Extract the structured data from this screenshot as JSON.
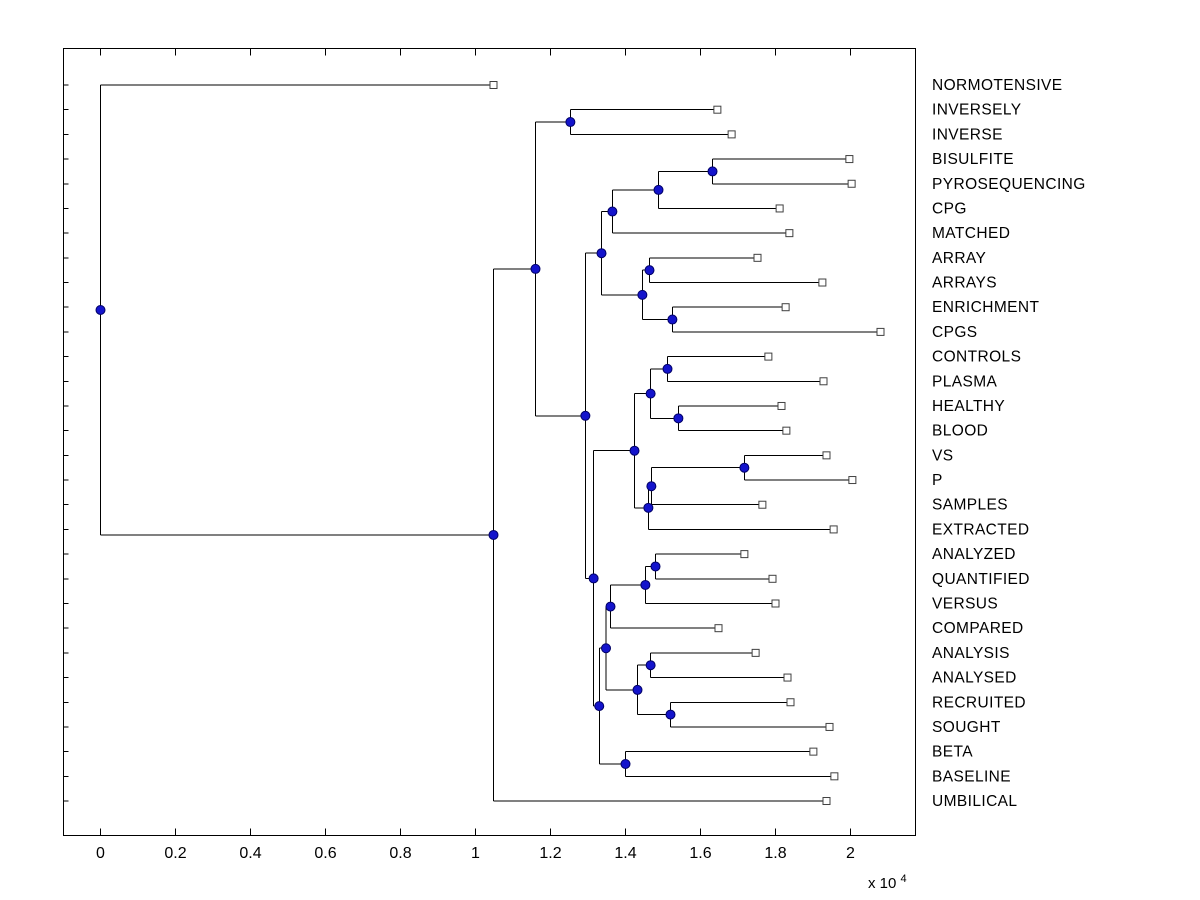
{
  "chart_data": {
    "type": "dendrogram",
    "orientation": "horizontal-root-left",
    "x_axis": {
      "tick_values": [
        0,
        2000,
        4000,
        6000,
        8000,
        10000,
        12000,
        14000,
        16000,
        18000,
        20000
      ],
      "tick_labels": [
        "0",
        "0.2",
        "0.4",
        "0.6",
        "0.8",
        "1",
        "1.2",
        "1.4",
        "1.6",
        "1.8",
        "2"
      ],
      "exponent_label": "x 10",
      "exponent": "4",
      "range": [
        -1000,
        21700
      ]
    },
    "leaves": [
      {
        "label": "NORMOTENSIVE",
        "distance": 10480
      },
      {
        "label": "INVERSELY",
        "distance": 16450
      },
      {
        "label": "INVERSE",
        "distance": 16830
      },
      {
        "label": "BISULFITE",
        "distance": 19970
      },
      {
        "label": "PYROSEQUENCING",
        "distance": 20030
      },
      {
        "label": "CPG",
        "distance": 18110
      },
      {
        "label": "MATCHED",
        "distance": 18370
      },
      {
        "label": "ARRAY",
        "distance": 17520
      },
      {
        "label": "ARRAYS",
        "distance": 19250
      },
      {
        "label": "ENRICHMENT",
        "distance": 18270
      },
      {
        "label": "CPGS",
        "distance": 20800
      },
      {
        "label": "CONTROLS",
        "distance": 17810
      },
      {
        "label": "PLASMA",
        "distance": 19280
      },
      {
        "label": "HEALTHY",
        "distance": 18160
      },
      {
        "label": "BLOOD",
        "distance": 18290
      },
      {
        "label": "VS",
        "distance": 19360
      },
      {
        "label": "P",
        "distance": 20050
      },
      {
        "label": "SAMPLES",
        "distance": 17650
      },
      {
        "label": "EXTRACTED",
        "distance": 19550
      },
      {
        "label": "ANALYZED",
        "distance": 17170
      },
      {
        "label": "QUANTIFIED",
        "distance": 17920
      },
      {
        "label": "VERSUS",
        "distance": 18000
      },
      {
        "label": "COMPARED",
        "distance": 16480
      },
      {
        "label": "ANALYSIS",
        "distance": 17470
      },
      {
        "label": "ANALYSED",
        "distance": 18320
      },
      {
        "label": "RECRUITED",
        "distance": 18400
      },
      {
        "label": "SOUGHT",
        "distance": 19440
      },
      {
        "label": "BETA",
        "distance": 19010
      },
      {
        "label": "BASELINE",
        "distance": 19570
      },
      {
        "label": "UMBILICAL",
        "distance": 19360
      }
    ],
    "internal_nodes": [
      {
        "id": "bp",
        "children": [
          "BISULFITE",
          "PYROSEQUENCING"
        ],
        "distance": 16320
      },
      {
        "id": "bpc",
        "children": [
          "bp",
          "CPG"
        ],
        "distance": 14880
      },
      {
        "id": "bpcm",
        "children": [
          "bpc",
          "MATCHED"
        ],
        "distance": 13650
      },
      {
        "id": "arr",
        "children": [
          "ARRAY",
          "ARRAYS"
        ],
        "distance": 14640
      },
      {
        "id": "ec",
        "children": [
          "ENRICHMENT",
          "CPGS"
        ],
        "distance": 15250
      },
      {
        "id": "ae",
        "children": [
          "arr",
          "ec"
        ],
        "distance": 14450
      },
      {
        "id": "meth",
        "children": [
          "bpcm",
          "ae"
        ],
        "distance": 13360
      },
      {
        "id": "inv",
        "children": [
          "INVERSELY",
          "INVERSE"
        ],
        "distance": 12530
      },
      {
        "id": "cp",
        "children": [
          "CONTROLS",
          "PLASMA"
        ],
        "distance": 15120
      },
      {
        "id": "hb",
        "children": [
          "HEALTHY",
          "BLOOD"
        ],
        "distance": 15410
      },
      {
        "id": "cphb",
        "children": [
          "cp",
          "hb"
        ],
        "distance": 14670
      },
      {
        "id": "vp",
        "children": [
          "VS",
          "P"
        ],
        "distance": 17170
      },
      {
        "id": "vps",
        "children": [
          "vp",
          "SAMPLES"
        ],
        "distance": 14690
      },
      {
        "id": "vpse",
        "children": [
          "vps",
          "EXTRACTED"
        ],
        "distance": 14610
      },
      {
        "id": "mid",
        "children": [
          "cphb",
          "vpse"
        ],
        "distance": 14240
      },
      {
        "id": "aq",
        "children": [
          "ANALYZED",
          "QUANTIFIED"
        ],
        "distance": 14800
      },
      {
        "id": "aqv",
        "children": [
          "aq",
          "VERSUS"
        ],
        "distance": 14530
      },
      {
        "id": "aqvc",
        "children": [
          "aqv",
          "COMPARED"
        ],
        "distance": 13600
      },
      {
        "id": "an",
        "children": [
          "ANALYSIS",
          "ANALYSED"
        ],
        "distance": 14670
      },
      {
        "id": "rs",
        "children": [
          "RECRUITED",
          "SOUGHT"
        ],
        "distance": 15200
      },
      {
        "id": "anrs",
        "children": [
          "an",
          "rs"
        ],
        "distance": 14320
      },
      {
        "id": "low1",
        "children": [
          "aqvc",
          "anrs"
        ],
        "distance": 13480
      },
      {
        "id": "bb",
        "children": [
          "BETA",
          "BASELINE"
        ],
        "distance": 14000
      },
      {
        "id": "low2",
        "children": [
          "low1",
          "bb"
        ],
        "distance": 13300
      },
      {
        "id": "midlow",
        "children": [
          "mid",
          "low2"
        ],
        "distance": 13150
      },
      {
        "id": "d",
        "children": [
          "meth",
          "midlow"
        ],
        "distance": 12930
      },
      {
        "id": "b",
        "children": [
          "inv",
          "d"
        ],
        "distance": 11600
      },
      {
        "id": "a",
        "children": [
          "b",
          "UMBILICAL"
        ],
        "distance": 10480
      },
      {
        "id": "root",
        "children": [
          "NORMOTENSIVE",
          "a"
        ],
        "distance": 0
      }
    ],
    "root_id": "root",
    "styles": {
      "line_color": "#000000",
      "internal_marker_fill": "#1414cc",
      "internal_marker_edge": "#000066",
      "leaf_marker_fill": "#ffffff",
      "leaf_marker_edge": "#404040",
      "background": "#ffffff"
    }
  }
}
